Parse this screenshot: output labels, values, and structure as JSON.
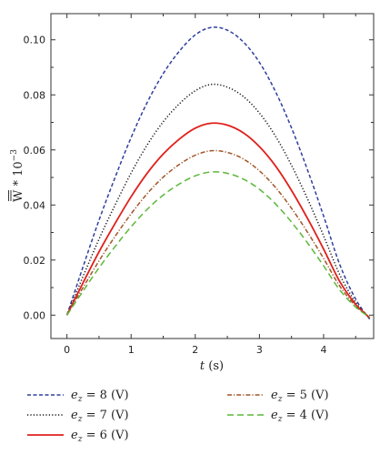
{
  "chart_data": {
    "type": "line",
    "xlabel": "t (s)",
    "ylabel": "W̅ * 10⁻³",
    "xlim": [
      -0.25,
      4.78
    ],
    "ylim": [
      -0.0085,
      0.1095
    ],
    "x_ticks": [
      0,
      1,
      2,
      3,
      4
    ],
    "y_ticks": [
      0.0,
      0.02,
      0.04,
      0.06,
      0.08,
      0.1
    ],
    "x_tick_labels": [
      "0",
      "1",
      "2",
      "3",
      "4"
    ],
    "y_tick_labels": [
      "0.00",
      "0.02",
      "0.04",
      "0.06",
      "0.08",
      "0.10"
    ],
    "grid": false,
    "legend_position": "bottom",
    "x": [
      0,
      0.25,
      0.5,
      0.75,
      1.0,
      1.25,
      1.5,
      1.75,
      2.0,
      2.25,
      2.5,
      2.75,
      3.0,
      3.25,
      3.5,
      3.75,
      4.0,
      4.25,
      4.5,
      4.72
    ],
    "series": [
      {
        "name": "e_z = 8 (V)",
        "color": "#2f3f9e",
        "dash": "dashed",
        "values": [
          0.0,
          0.0175,
          0.0345,
          0.05,
          0.0645,
          0.0772,
          0.0877,
          0.0958,
          0.1018,
          0.1045,
          0.1035,
          0.0992,
          0.0918,
          0.0812,
          0.068,
          0.0527,
          0.036,
          0.0185,
          0.0058,
          -0.0015
        ]
      },
      {
        "name": "e_z = 7 (V)",
        "color": "#111111",
        "dash": "dotted",
        "values": [
          0.0,
          0.014,
          0.0276,
          0.04,
          0.0516,
          0.0618,
          0.0702,
          0.0767,
          0.0815,
          0.0838,
          0.0828,
          0.0794,
          0.0734,
          0.065,
          0.0544,
          0.0422,
          0.0288,
          0.0148,
          0.0046,
          -0.0012
        ]
      },
      {
        "name": "e_z = 6 (V)",
        "color": "#e0201b",
        "dash": "solid",
        "values": [
          0.0,
          0.0117,
          0.023,
          0.0333,
          0.043,
          0.0515,
          0.0585,
          0.0639,
          0.0679,
          0.0697,
          0.069,
          0.0662,
          0.0612,
          0.0542,
          0.0453,
          0.0351,
          0.024,
          0.0123,
          0.0039,
          -0.001
        ]
      },
      {
        "name": "e_z = 5 (V)",
        "color": "#a0562a",
        "dash": "dashdot",
        "values": [
          0.0,
          0.01,
          0.0197,
          0.0286,
          0.0368,
          0.0441,
          0.0501,
          0.0547,
          0.0581,
          0.0597,
          0.0591,
          0.0567,
          0.0524,
          0.0464,
          0.0388,
          0.0301,
          0.0206,
          0.0106,
          0.0033,
          -0.0009
        ]
      },
      {
        "name": "e_z = 4 (V)",
        "color": "#5cb83a",
        "dash": "longdash",
        "values": [
          0.0,
          0.0087,
          0.0172,
          0.0249,
          0.0321,
          0.0384,
          0.0436,
          0.0476,
          0.0506,
          0.052,
          0.0515,
          0.0494,
          0.0457,
          0.0404,
          0.0338,
          0.0262,
          0.0179,
          0.0092,
          0.0029,
          -0.0008
        ]
      }
    ],
    "legend": {
      "rows": [
        [
          {
            "series": 0,
            "prefix": "e",
            "sub": "z",
            "text": " = 8 (V)"
          },
          {
            "series": 3,
            "prefix": "e",
            "sub": "z",
            "text": " = 5 (V)"
          }
        ],
        [
          {
            "series": 1,
            "prefix": "e",
            "sub": "z",
            "text": " = 7 (V)"
          },
          {
            "series": 4,
            "prefix": "e",
            "sub": "z",
            "text": " = 4 (V)"
          }
        ],
        [
          {
            "series": 2,
            "prefix": "e",
            "sub": "z",
            "text": " = 6 (V)"
          }
        ]
      ]
    }
  }
}
